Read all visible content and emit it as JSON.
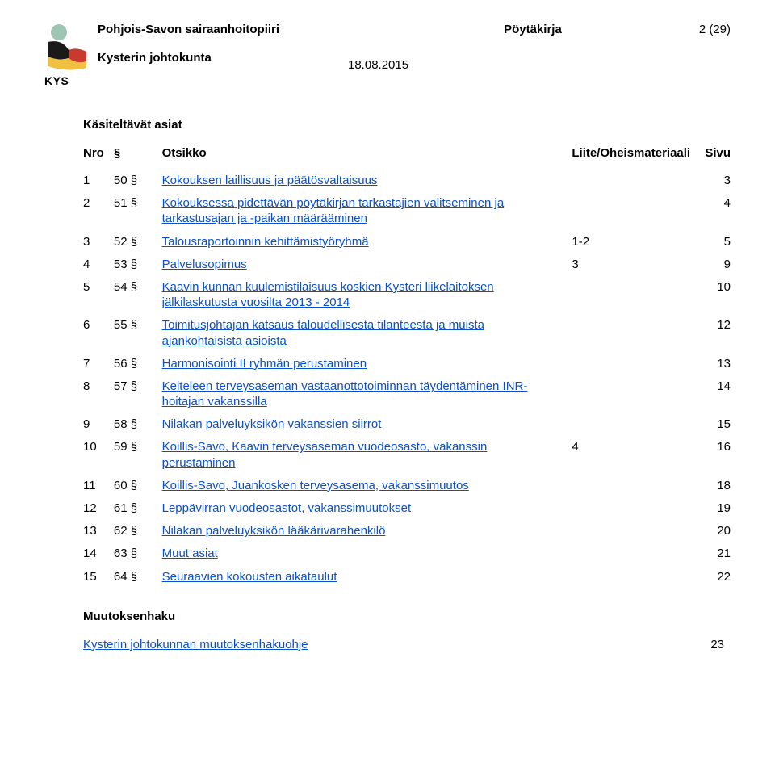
{
  "header": {
    "org_name": "Pohjois-Savon sairaanhoitopiiri",
    "doc_type": "Pöytäkirja",
    "page_indicator": "2 (29)",
    "board_name": "Kysterin johtokunta",
    "date": "18.08.2015",
    "kys_label": "KYS"
  },
  "logo": {
    "dot_color": "#9fc5b3",
    "flag_black": "#1a1a1a",
    "flag_red": "#c83a2e",
    "flag_yellow": "#f0c13e"
  },
  "section_title": "Käsiteltävät asiat",
  "columns": {
    "nro": "Nro",
    "section": "§",
    "otsikko": "Otsikko",
    "liite": "Liite/Oheismateriaali",
    "sivu": "Sivu"
  },
  "link_color": "#0b4fcb",
  "rows": [
    {
      "nro": "1",
      "sec": "50 §",
      "title": "Kokouksen laillisuus ja päätösvaltaisuus",
      "liite": "",
      "sivu": "3"
    },
    {
      "nro": "2",
      "sec": "51 §",
      "title": "Kokouksessa pidettävän pöytäkirjan tarkastajien valitseminen ja tarkastusajan ja -paikan määrääminen",
      "liite": "",
      "sivu": "4"
    },
    {
      "nro": "3",
      "sec": "52 §",
      "title": "Talousraportoinnin kehittämistyöryhmä",
      "liite": "1-2",
      "sivu": "5"
    },
    {
      "nro": "4",
      "sec": "53 §",
      "title": "Palvelusopimus",
      "liite": "3",
      "sivu": "9"
    },
    {
      "nro": "5",
      "sec": "54 §",
      "title": "Kaavin kunnan kuulemistilaisuus koskien Kysteri liikelaitoksen jälkilaskutusta vuosilta 2013 - 2014",
      "liite": "",
      "sivu": "10"
    },
    {
      "nro": "6",
      "sec": "55 §",
      "title": "Toimitusjohtajan katsaus taloudellisesta tilanteesta ja muista ajankohtaisista asioista",
      "liite": "",
      "sivu": "12"
    },
    {
      "nro": "7",
      "sec": "56 §",
      "title": "Harmonisointi II ryhmän perustaminen",
      "liite": "",
      "sivu": "13"
    },
    {
      "nro": "8",
      "sec": "57 §",
      "title": "Keiteleen terveysaseman vastaanottotoiminnan täydentäminen INR-hoitajan vakanssilla",
      "liite": "",
      "sivu": "14"
    },
    {
      "nro": "9",
      "sec": "58 §",
      "title": "Nilakan palveluyksikön vakanssien siirrot",
      "liite": "",
      "sivu": "15"
    },
    {
      "nro": "10",
      "sec": "59 §",
      "title": "Koillis-Savo, Kaavin terveysaseman vuodeosasto, vakanssin perustaminen",
      "liite": "4",
      "sivu": "16"
    },
    {
      "nro": "11",
      "sec": "60 §",
      "title": "Koillis-Savo, Juankosken terveysasema, vakanssimuutos",
      "liite": "",
      "sivu": "18"
    },
    {
      "nro": "12",
      "sec": "61 §",
      "title": "Leppävirran vuodeosastot, vakanssimuutokset",
      "liite": "",
      "sivu": "19"
    },
    {
      "nro": "13",
      "sec": "62 §",
      "title": "Nilakan palveluyksikön lääkärivarahenkilö",
      "liite": "",
      "sivu": "20"
    },
    {
      "nro": "14",
      "sec": "63 §",
      "title": "Muut asiat",
      "liite": "",
      "sivu": "21"
    },
    {
      "nro": "15",
      "sec": "64 §",
      "title": "Seuraavien kokousten aikataulut",
      "liite": "",
      "sivu": "22"
    }
  ],
  "muutoksenhaku": {
    "title": "Muutoksenhaku",
    "link_text": "Kysterin johtokunnan muutoksenhakuohje",
    "page": "23"
  }
}
